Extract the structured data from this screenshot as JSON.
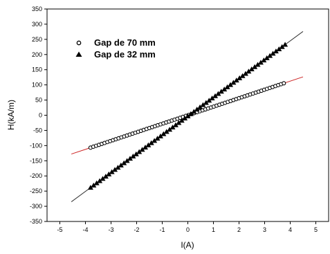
{
  "chart_data": {
    "type": "scatter",
    "title": "",
    "xlabel": "I(A)",
    "ylabel": "H(kA/m)",
    "xlim": [
      -5.5,
      5.5
    ],
    "ylim": [
      -350,
      350
    ],
    "x_ticks": [
      -5,
      -4,
      -3,
      -2,
      -1,
      0,
      1,
      2,
      3,
      4,
      5
    ],
    "y_ticks": [
      -350,
      -300,
      -250,
      -200,
      -150,
      -100,
      -50,
      0,
      50,
      100,
      150,
      200,
      250,
      300,
      350
    ],
    "grid": false,
    "legend_position": "top-left",
    "series": [
      {
        "name": "Gap de 70 mm",
        "marker": "open-circle",
        "color": "#000000",
        "x_range": [
          -3.8,
          3.75
        ],
        "n_points": 70,
        "fit": {
          "slope": 28.1,
          "intercept": 0,
          "x_range": [
            -4.55,
            4.5
          ],
          "color": "#cc2222"
        }
      },
      {
        "name": "Gap de 32 mm",
        "marker": "filled-triangle",
        "color": "#000000",
        "x_range": [
          -3.8,
          3.8
        ],
        "n_points": 65,
        "fit": {
          "slope": 62.0,
          "intercept": -3,
          "x_range": [
            -4.55,
            4.5
          ],
          "color": "#333333"
        }
      }
    ]
  }
}
